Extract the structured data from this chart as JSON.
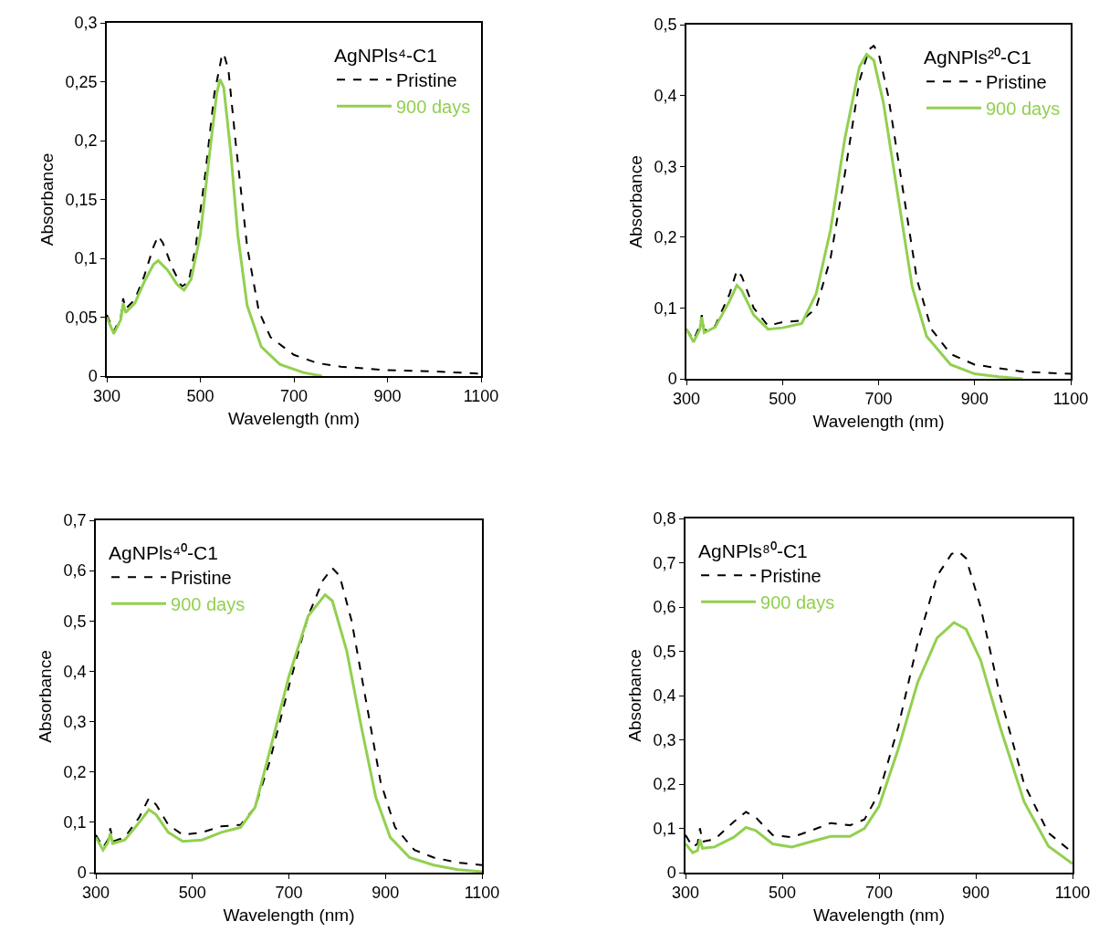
{
  "chart_data": [
    {
      "type": "line",
      "xlabel": "Wavelength (nm)",
      "ylabel": "Absorbance",
      "legend_title": "AgNPls⁴-C1",
      "legend": "top right",
      "xlim": [
        300,
        1100
      ],
      "xticks": [
        300,
        500,
        700,
        900,
        1100
      ],
      "ylim": [
        0,
        0.3
      ],
      "yticks": [
        0,
        {
          "value": 0.05,
          "label": "0,05"
        },
        {
          "value": 0.1,
          "label": "0,1"
        },
        {
          "value": 0.15,
          "label": "0,15"
        },
        {
          "value": 0.2,
          "label": "0,2"
        },
        {
          "value": 0.25,
          "label": "0,25"
        },
        {
          "value": 0.3,
          "label": "0,3"
        }
      ],
      "series": [
        {
          "name": "Pristine",
          "color": "#000000",
          "line_style": "dashed",
          "x": [
            300,
            315,
            330,
            335,
            340,
            360,
            380,
            400,
            410,
            420,
            440,
            460,
            475,
            490,
            510,
            530,
            545,
            550,
            560,
            575,
            600,
            625,
            650,
            700,
            750,
            800,
            900,
            1000,
            1100
          ],
          "values": [
            0.052,
            0.038,
            0.05,
            0.066,
            0.057,
            0.065,
            0.085,
            0.11,
            0.119,
            0.113,
            0.092,
            0.076,
            0.08,
            0.11,
            0.17,
            0.24,
            0.27,
            0.274,
            0.26,
            0.2,
            0.11,
            0.055,
            0.033,
            0.018,
            0.011,
            0.008,
            0.005,
            0.004,
            0.002
          ]
        },
        {
          "name": "900 days",
          "color": "#92d050",
          "line_style": "solid",
          "x": [
            300,
            315,
            330,
            335,
            340,
            360,
            380,
            400,
            410,
            430,
            450,
            465,
            480,
            500,
            520,
            535,
            542,
            550,
            565,
            580,
            600,
            630,
            670,
            720,
            760
          ],
          "values": [
            0.05,
            0.036,
            0.048,
            0.062,
            0.054,
            0.062,
            0.08,
            0.095,
            0.098,
            0.09,
            0.078,
            0.073,
            0.082,
            0.12,
            0.19,
            0.24,
            0.252,
            0.245,
            0.19,
            0.12,
            0.06,
            0.025,
            0.01,
            0.003,
            0
          ]
        }
      ]
    },
    {
      "type": "line",
      "xlabel": "Wavelength (nm)",
      "ylabel": "Absorbance",
      "legend_title": "AgNPls²⁰-C1",
      "legend": "top right",
      "xlim": [
        300,
        1100
      ],
      "xticks": [
        300,
        500,
        700,
        900,
        1100
      ],
      "ylim": [
        0,
        0.5
      ],
      "yticks": [
        0,
        {
          "value": 0.1,
          "label": "0,1"
        },
        {
          "value": 0.2,
          "label": "0,2"
        },
        {
          "value": 0.3,
          "label": "0,3"
        },
        {
          "value": 0.4,
          "label": "0,4"
        },
        {
          "value": 0.5,
          "label": "0,5"
        }
      ],
      "series": [
        {
          "name": "Pristine",
          "color": "#000000",
          "line_style": "dashed",
          "x": [
            300,
            315,
            328,
            332,
            337,
            360,
            390,
            405,
            415,
            440,
            470,
            500,
            540,
            570,
            600,
            630,
            660,
            680,
            690,
            700,
            720,
            750,
            780,
            810,
            850,
            900,
            1000,
            1100
          ],
          "values": [
            0.07,
            0.055,
            0.075,
            0.09,
            0.068,
            0.075,
            0.12,
            0.153,
            0.145,
            0.1,
            0.075,
            0.08,
            0.082,
            0.1,
            0.17,
            0.29,
            0.42,
            0.465,
            0.47,
            0.46,
            0.4,
            0.27,
            0.14,
            0.07,
            0.035,
            0.02,
            0.01,
            0.007
          ]
        },
        {
          "name": "900 days",
          "color": "#92d050",
          "line_style": "solid",
          "x": [
            300,
            315,
            328,
            332,
            337,
            360,
            390,
            405,
            415,
            440,
            470,
            500,
            540,
            570,
            600,
            630,
            660,
            675,
            690,
            710,
            740,
            770,
            800,
            850,
            900,
            950,
            1000
          ],
          "values": [
            0.07,
            0.052,
            0.07,
            0.087,
            0.065,
            0.073,
            0.11,
            0.132,
            0.125,
            0.09,
            0.07,
            0.072,
            0.078,
            0.12,
            0.21,
            0.34,
            0.44,
            0.458,
            0.45,
            0.39,
            0.26,
            0.13,
            0.06,
            0.02,
            0.007,
            0.003,
            0
          ]
        }
      ]
    },
    {
      "type": "line",
      "xlabel": "Wavelength (nm)",
      "ylabel": "Absorbance",
      "legend_title": "AgNPls⁴⁰-C1",
      "legend": "top left",
      "xlim": [
        300,
        1100
      ],
      "xticks": [
        300,
        500,
        700,
        900,
        1100
      ],
      "ylim": [
        0,
        0.7
      ],
      "yticks": [
        0,
        {
          "value": 0.1,
          "label": "0,1"
        },
        {
          "value": 0.2,
          "label": "0,2"
        },
        {
          "value": 0.3,
          "label": "0,3"
        },
        {
          "value": 0.4,
          "label": "0,4"
        },
        {
          "value": 0.5,
          "label": "0,5"
        },
        {
          "value": 0.6,
          "label": "0,6"
        },
        {
          "value": 0.7,
          "label": "0,7"
        }
      ],
      "series": [
        {
          "name": "Pristine",
          "color": "#000000",
          "line_style": "dashed",
          "x": [
            300,
            315,
            325,
            330,
            335,
            360,
            390,
            410,
            425,
            450,
            480,
            520,
            560,
            600,
            630,
            660,
            700,
            740,
            770,
            790,
            805,
            830,
            860,
            890,
            920,
            960,
            1000,
            1050,
            1100
          ],
          "values": [
            0.075,
            0.05,
            0.065,
            0.088,
            0.062,
            0.07,
            0.11,
            0.148,
            0.135,
            0.095,
            0.075,
            0.08,
            0.092,
            0.095,
            0.13,
            0.22,
            0.37,
            0.51,
            0.58,
            0.605,
            0.59,
            0.5,
            0.34,
            0.18,
            0.09,
            0.045,
            0.03,
            0.02,
            0.015
          ]
        },
        {
          "name": "900 days",
          "color": "#92d050",
          "line_style": "solid",
          "x": [
            300,
            315,
            325,
            330,
            335,
            360,
            390,
            410,
            425,
            450,
            480,
            520,
            560,
            600,
            630,
            660,
            700,
            740,
            775,
            790,
            820,
            850,
            880,
            910,
            950,
            1000,
            1050,
            1100
          ],
          "values": [
            0.07,
            0.045,
            0.06,
            0.078,
            0.058,
            0.065,
            0.1,
            0.125,
            0.115,
            0.08,
            0.062,
            0.065,
            0.08,
            0.09,
            0.13,
            0.24,
            0.39,
            0.51,
            0.552,
            0.54,
            0.44,
            0.29,
            0.15,
            0.07,
            0.03,
            0.015,
            0.006,
            0.002
          ]
        }
      ]
    },
    {
      "type": "line",
      "xlabel": "Wavelength (nm)",
      "ylabel": "Absorbance",
      "legend_title": "AgNPls⁸⁰-C1",
      "legend": "top left",
      "xlim": [
        300,
        1100
      ],
      "xticks": [
        300,
        500,
        700,
        900,
        1100
      ],
      "ylim": [
        0,
        0.8
      ],
      "yticks": [
        0,
        {
          "value": 0.1,
          "label": "0,1"
        },
        {
          "value": 0.2,
          "label": "0,2"
        },
        {
          "value": 0.3,
          "label": "0,3"
        },
        {
          "value": 0.4,
          "label": "0,4"
        },
        {
          "value": 0.5,
          "label": "0,5"
        },
        {
          "value": 0.6,
          "label": "0,6"
        },
        {
          "value": 0.7,
          "label": "0,7"
        },
        {
          "value": 0.8,
          "label": "0,8"
        }
      ],
      "series": [
        {
          "name": "Pristine",
          "color": "#000000",
          "line_style": "dashed",
          "x": [
            300,
            315,
            325,
            330,
            335,
            360,
            400,
            425,
            445,
            480,
            520,
            560,
            600,
            640,
            670,
            700,
            740,
            780,
            820,
            850,
            865,
            880,
            910,
            950,
            1000,
            1050,
            1100
          ],
          "values": [
            0.085,
            0.058,
            0.065,
            0.1,
            0.07,
            0.075,
            0.115,
            0.137,
            0.125,
            0.085,
            0.08,
            0.095,
            0.112,
            0.107,
            0.12,
            0.18,
            0.33,
            0.52,
            0.67,
            0.72,
            0.725,
            0.71,
            0.6,
            0.4,
            0.2,
            0.09,
            0.045
          ]
        },
        {
          "name": "900 days",
          "color": "#92d050",
          "line_style": "solid",
          "x": [
            300,
            315,
            325,
            330,
            335,
            360,
            400,
            425,
            445,
            480,
            520,
            560,
            600,
            640,
            670,
            700,
            740,
            780,
            820,
            855,
            880,
            910,
            950,
            1000,
            1050,
            1100
          ],
          "values": [
            0.065,
            0.045,
            0.05,
            0.075,
            0.055,
            0.058,
            0.08,
            0.102,
            0.095,
            0.065,
            0.058,
            0.07,
            0.082,
            0.082,
            0.1,
            0.15,
            0.28,
            0.43,
            0.53,
            0.565,
            0.55,
            0.48,
            0.33,
            0.16,
            0.06,
            0.02
          ]
        }
      ]
    }
  ]
}
